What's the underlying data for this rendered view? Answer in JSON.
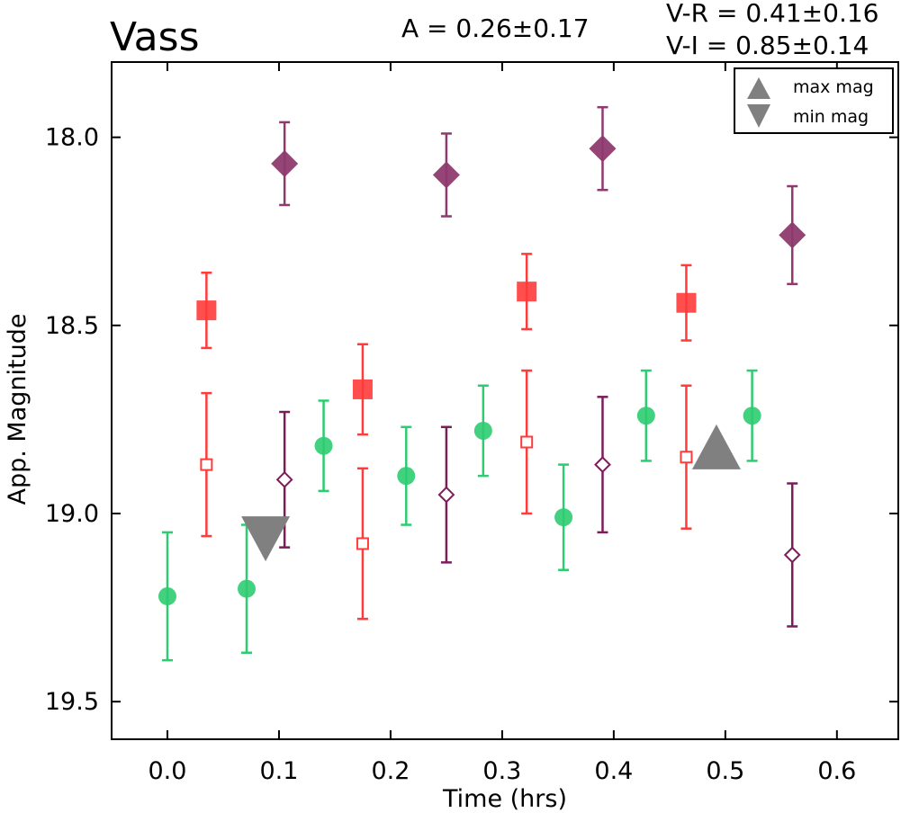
{
  "chart_data": {
    "type": "scatter",
    "title": "Vass",
    "annotations": [
      "A  = 0.26±0.17",
      "V-R = 0.41±0.16",
      "V-I  = 0.85±0.14"
    ],
    "xlabel": "Time (hrs)",
    "ylabel": "App. Magnitude",
    "xlim": [
      -0.05,
      0.655
    ],
    "ylim": [
      19.6,
      17.8
    ],
    "y_inverted": true,
    "xticks": [
      "0.0",
      "0.1",
      "0.2",
      "0.3",
      "0.4",
      "0.5",
      "0.6"
    ],
    "yticks": [
      "18.0",
      "18.5",
      "19.0",
      "19.5"
    ],
    "grid": false,
    "legend": {
      "placement": "top-right",
      "entries": [
        "max mag",
        "min mag"
      ]
    },
    "series": [
      {
        "marker": "circle-filled",
        "color": "#2ecc71",
        "points": [
          {
            "x": 0.0,
            "y": 19.22,
            "err": 0.17
          },
          {
            "x": 0.071,
            "y": 19.2,
            "err": 0.17
          },
          {
            "x": 0.14,
            "y": 18.82,
            "err": 0.12
          },
          {
            "x": 0.214,
            "y": 18.9,
            "err": 0.13
          },
          {
            "x": 0.283,
            "y": 18.78,
            "err": 0.12
          },
          {
            "x": 0.355,
            "y": 19.01,
            "err": 0.14
          },
          {
            "x": 0.429,
            "y": 18.74,
            "err": 0.12
          },
          {
            "x": 0.524,
            "y": 18.74,
            "err": 0.12
          }
        ]
      },
      {
        "marker": "square-filled",
        "color": "#ff3b3b",
        "points": [
          {
            "x": 0.035,
            "y": 18.46,
            "err": 0.1
          },
          {
            "x": 0.175,
            "y": 18.67,
            "err": 0.12
          },
          {
            "x": 0.322,
            "y": 18.41,
            "err": 0.1
          },
          {
            "x": 0.465,
            "y": 18.44,
            "err": 0.1
          }
        ]
      },
      {
        "marker": "square-open",
        "color": "#ff3b3b",
        "points": [
          {
            "x": 0.035,
            "y": 18.87,
            "err": 0.19
          },
          {
            "x": 0.175,
            "y": 19.08,
            "err": 0.2
          },
          {
            "x": 0.322,
            "y": 18.81,
            "err": 0.19
          },
          {
            "x": 0.465,
            "y": 18.85,
            "err": 0.19
          }
        ]
      },
      {
        "marker": "diamond-filled",
        "color": "#8e3a6e",
        "points": [
          {
            "x": 0.105,
            "y": 18.07,
            "err": 0.11
          },
          {
            "x": 0.25,
            "y": 18.1,
            "err": 0.11
          },
          {
            "x": 0.39,
            "y": 18.03,
            "err": 0.11
          },
          {
            "x": 0.56,
            "y": 18.26,
            "err": 0.13
          }
        ]
      },
      {
        "marker": "diamond-open",
        "color": "#7a1e5a",
        "points": [
          {
            "x": 0.105,
            "y": 18.91,
            "err": 0.18
          },
          {
            "x": 0.25,
            "y": 18.95,
            "err": 0.18
          },
          {
            "x": 0.39,
            "y": 18.87,
            "err": 0.18
          },
          {
            "x": 0.56,
            "y": 19.11,
            "err": 0.19
          }
        ]
      },
      {
        "marker": "triangle-up",
        "color": "#808080",
        "label": "max mag",
        "points": [
          {
            "x": 0.492,
            "y": 18.83
          }
        ]
      },
      {
        "marker": "triangle-down",
        "color": "#808080",
        "label": "min mag",
        "points": [
          {
            "x": 0.088,
            "y": 19.06
          }
        ]
      }
    ]
  }
}
